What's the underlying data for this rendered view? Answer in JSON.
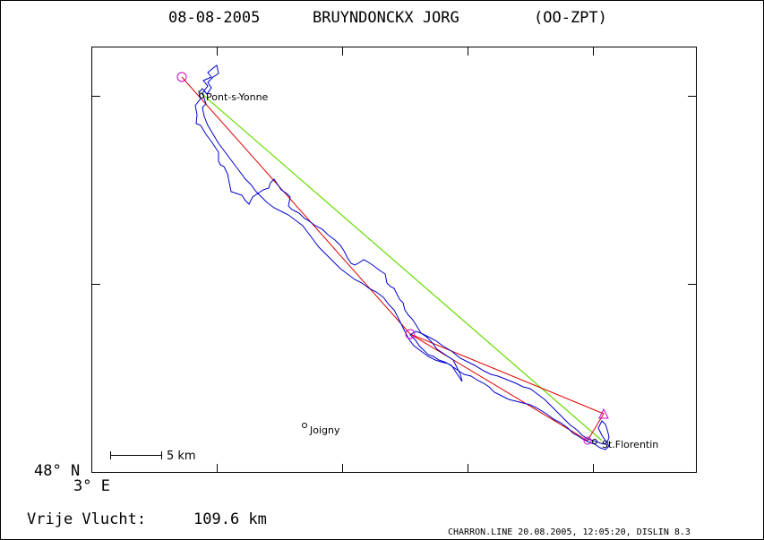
{
  "header": {
    "date": "08-08-2005",
    "pilot": "BRUYNDONCKX JORG",
    "registration": "(OO-ZPT)"
  },
  "axes": {
    "lat_label": "48° N",
    "lon_label": "3° E"
  },
  "towns": [
    {
      "name": "Pont-s-Yonne"
    },
    {
      "name": "Joigny"
    },
    {
      "name": "St.Florentin"
    }
  ],
  "scale_bar": {
    "label": "5 km"
  },
  "summary": {
    "label": "Vrije Vlucht:",
    "distance": "109.6 km"
  },
  "footer": {
    "credit": "CHARRON.LINE 20.08.2005, 12:05:20, DISLIN 8.3"
  },
  "colors": {
    "track": "#0000cc",
    "task_line": "#dd0000",
    "free_flight_line": "#66dd00",
    "turnpoint": "#cc00cc",
    "frame": "#000000"
  }
}
